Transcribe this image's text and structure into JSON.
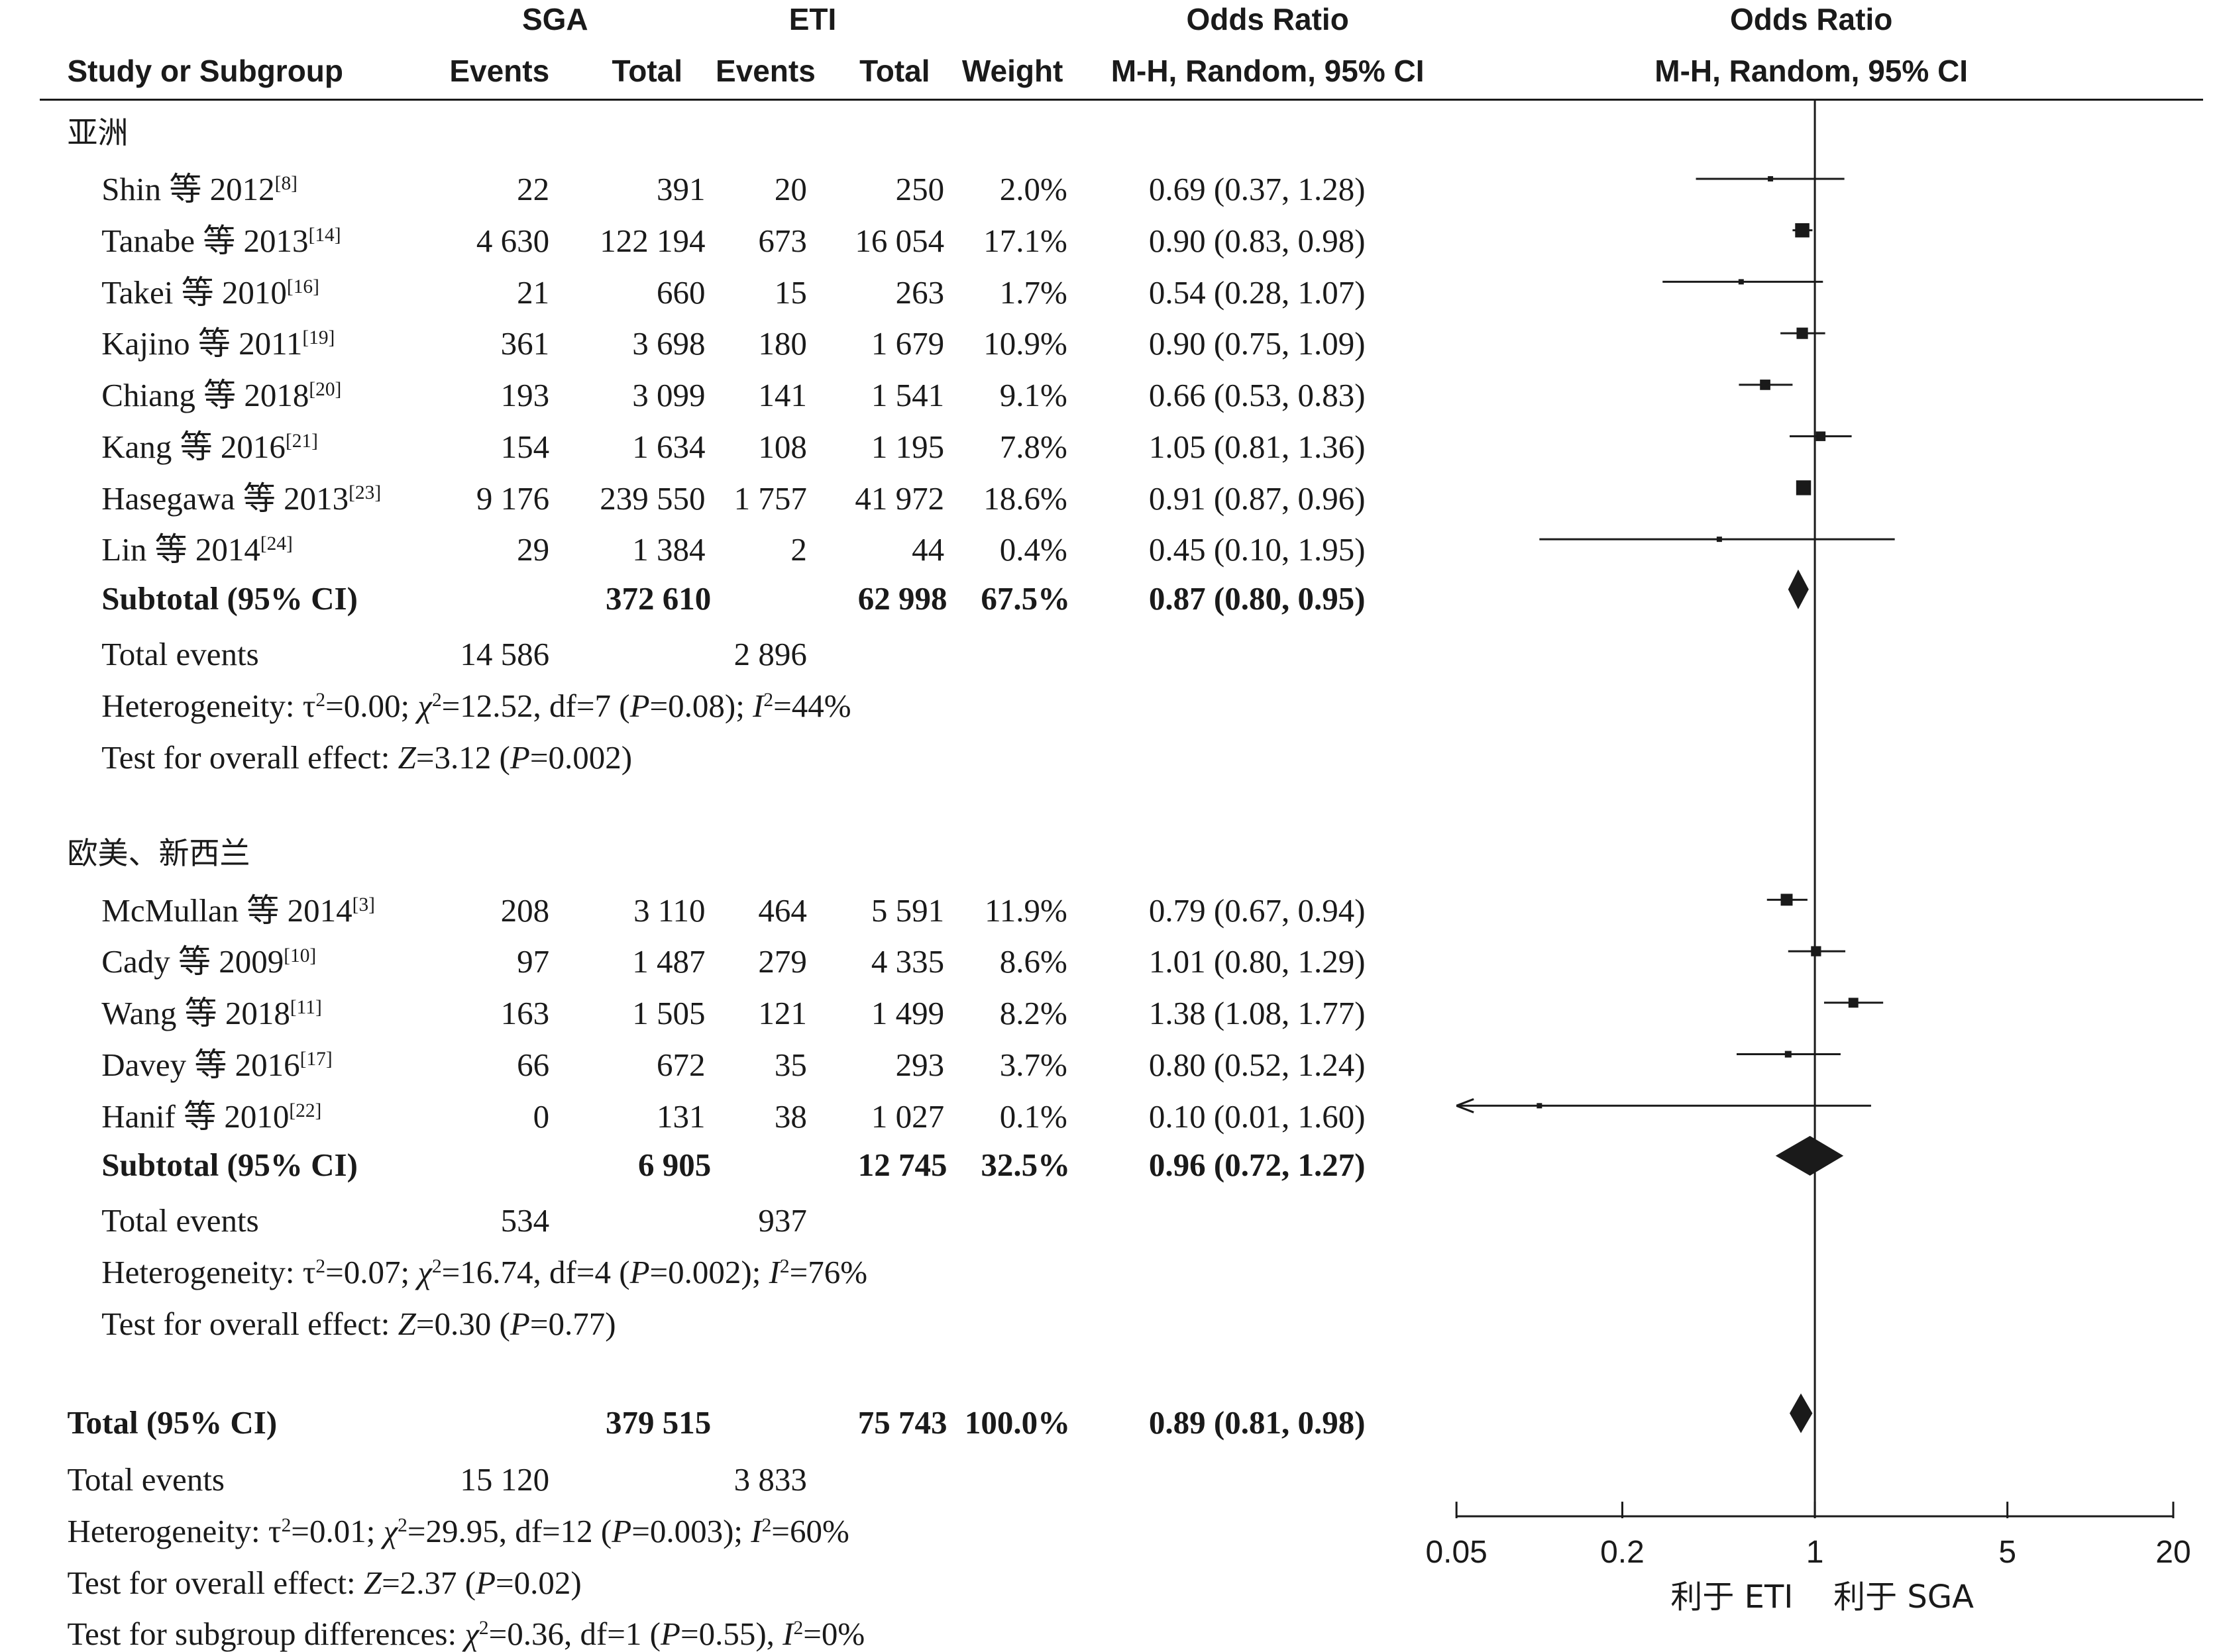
{
  "header": {
    "group1_label": "SGA",
    "group2_label": "ETI",
    "or_label_table": "Odds Ratio",
    "or_label_plot": "Odds Ratio",
    "study_col": "Study or Subgroup",
    "events1": "Events",
    "total1": "Total",
    "events2": "Events",
    "total2": "Total",
    "weight": "Weight",
    "method_table": "M-H, Random, 95% CI",
    "method_plot": "M-H, Random, 95% CI"
  },
  "subgroups": [
    {
      "title": "亚洲",
      "studies": [
        {
          "name": "Shin 等 2012",
          "ref": "[8]",
          "e1": "22",
          "t1": "391",
          "e2": "20",
          "t2": "250",
          "weight": "2.0%",
          "ci": "0.69 (0.37, 1.28)"
        },
        {
          "name": "Tanabe 等 2013",
          "ref": "[14]",
          "e1": "4 630",
          "t1": "122 194",
          "e2": "673",
          "t2": "16 054",
          "weight": "17.1%",
          "ci": "0.90 (0.83, 0.98)"
        },
        {
          "name": "Takei 等 2010",
          "ref": "[16]",
          "e1": "21",
          "t1": "660",
          "e2": "15",
          "t2": "263",
          "weight": "1.7%",
          "ci": "0.54 (0.28, 1.07)"
        },
        {
          "name": "Kajino 等 2011",
          "ref": "[19]",
          "e1": "361",
          "t1": "3 698",
          "e2": "180",
          "t2": "1 679",
          "weight": "10.9%",
          "ci": "0.90 (0.75, 1.09)"
        },
        {
          "name": "Chiang 等 2018",
          "ref": "[20]",
          "e1": "193",
          "t1": "3 099",
          "e2": "141",
          "t2": "1 541",
          "weight": "9.1%",
          "ci": "0.66 (0.53, 0.83)"
        },
        {
          "name": "Kang 等 2016",
          "ref": "[21]",
          "e1": "154",
          "t1": "1 634",
          "e2": "108",
          "t2": "1 195",
          "weight": "7.8%",
          "ci": "1.05 (0.81, 1.36)"
        },
        {
          "name": "Hasegawa 等 2013",
          "ref": "[23]",
          "e1": "9 176",
          "t1": "239 550",
          "e2": "1 757",
          "t2": "41 972",
          "weight": "18.6%",
          "ci": "0.91 (0.87, 0.96)"
        },
        {
          "name": "Lin 等 2014",
          "ref": "[24]",
          "e1": "29",
          "t1": "1 384",
          "e2": "2",
          "t2": "44",
          "weight": "0.4%",
          "ci": "0.45 (0.10, 1.95)"
        }
      ],
      "subtotal": {
        "label": "Subtotal (95% CI)",
        "t1": "372 610",
        "t2": "62 998",
        "weight": "67.5%",
        "ci": "0.87 (0.80, 0.95)"
      },
      "total_events": {
        "label": "Total events",
        "e1": "14 586",
        "e2": "2 896"
      },
      "heterogeneity": {
        "prefix": "Heterogeneity: ",
        "tau2": "0.00",
        "chi2": "12.52",
        "df": "7",
        "p": "0.08",
        "i2": "44%"
      },
      "overall": {
        "prefix": "Test for overall effect: ",
        "z": "3.12",
        "p": "0.002"
      }
    },
    {
      "title": "欧美、新西兰",
      "studies": [
        {
          "name": "McMullan 等 2014",
          "ref": "[3]",
          "e1": "208",
          "t1": "3 110",
          "e2": "464",
          "t2": "5 591",
          "weight": "11.9%",
          "ci": "0.79 (0.67, 0.94)"
        },
        {
          "name": "Cady 等 2009",
          "ref": "[10]",
          "e1": "97",
          "t1": "1 487",
          "e2": "279",
          "t2": "4 335",
          "weight": "8.6%",
          "ci": "1.01 (0.80, 1.29)"
        },
        {
          "name": "Wang 等 2018",
          "ref": "[11]",
          "e1": "163",
          "t1": "1 505",
          "e2": "121",
          "t2": "1 499",
          "weight": "8.2%",
          "ci": "1.38 (1.08, 1.77)"
        },
        {
          "name": "Davey 等 2016",
          "ref": "[17]",
          "e1": "66",
          "t1": "672",
          "e2": "35",
          "t2": "293",
          "weight": "3.7%",
          "ci": "0.80 (0.52, 1.24)"
        },
        {
          "name": "Hanif 等 2010",
          "ref": "[22]",
          "e1": "0",
          "t1": "131",
          "e2": "38",
          "t2": "1 027",
          "weight": "0.1%",
          "ci": "0.10 (0.01, 1.60)"
        }
      ],
      "subtotal": {
        "label": "Subtotal (95% CI)",
        "t1": "6 905",
        "t2": "12 745",
        "weight": "32.5%",
        "ci": "0.96 (0.72, 1.27)"
      },
      "total_events": {
        "label": "Total events",
        "e1": "534",
        "e2": "937"
      },
      "heterogeneity": {
        "prefix": "Heterogeneity: ",
        "tau2": "0.07",
        "chi2": "16.74",
        "df": "4",
        "p": "0.002",
        "i2": "76%"
      },
      "overall": {
        "prefix": "Test for overall effect: ",
        "z": "0.30",
        "p": "0.77"
      }
    }
  ],
  "total": {
    "label": "Total (95% CI)",
    "t1": "379 515",
    "t2": "75 743",
    "weight": "100.0%",
    "ci": "0.89 (0.81, 0.98)",
    "total_events": {
      "label": "Total events",
      "e1": "15 120",
      "e2": "3 833"
    },
    "heterogeneity": {
      "prefix": "Heterogeneity: ",
      "tau2": "0.01",
      "chi2": "29.95",
      "df": "12",
      "p": "0.003",
      "i2": "60%"
    },
    "overall": {
      "prefix": "Test for overall effect: ",
      "z": "2.37",
      "p": "0.02"
    },
    "subgroup_diff": {
      "prefix": "Test for subgroup differences: ",
      "chi2": "0.36",
      "df": "1",
      "p": "0.55",
      "i2": "0%"
    }
  },
  "chart_data": {
    "type": "forest",
    "scale": "log",
    "xlim": [
      0.05,
      20
    ],
    "ticks": [
      "0.05",
      "0.2",
      "1",
      "5",
      "20"
    ],
    "tick_values": [
      0.05,
      0.2,
      1,
      5,
      20
    ],
    "favours_left": "利于 ETI",
    "favours_right": "利于 SGA",
    "studies": [
      {
        "or": 0.69,
        "lo": 0.37,
        "hi": 1.28,
        "weight": 2.0
      },
      {
        "or": 0.9,
        "lo": 0.83,
        "hi": 0.98,
        "weight": 17.1
      },
      {
        "or": 0.54,
        "lo": 0.28,
        "hi": 1.07,
        "weight": 1.7
      },
      {
        "or": 0.9,
        "lo": 0.75,
        "hi": 1.09,
        "weight": 10.9
      },
      {
        "or": 0.66,
        "lo": 0.53,
        "hi": 0.83,
        "weight": 9.1
      },
      {
        "or": 1.05,
        "lo": 0.81,
        "hi": 1.36,
        "weight": 7.8
      },
      {
        "or": 0.91,
        "lo": 0.87,
        "hi": 0.96,
        "weight": 18.6
      },
      {
        "or": 0.45,
        "lo": 0.1,
        "hi": 1.95,
        "weight": 0.4
      },
      {
        "or": 0.79,
        "lo": 0.67,
        "hi": 0.94,
        "weight": 11.9
      },
      {
        "or": 1.01,
        "lo": 0.8,
        "hi": 1.29,
        "weight": 8.6
      },
      {
        "or": 1.38,
        "lo": 1.08,
        "hi": 1.77,
        "weight": 8.2
      },
      {
        "or": 0.8,
        "lo": 0.52,
        "hi": 1.24,
        "weight": 3.7
      },
      {
        "or": 0.1,
        "lo": 0.01,
        "hi": 1.6,
        "weight": 0.1
      }
    ],
    "diamonds": [
      {
        "or": 0.87,
        "lo": 0.8,
        "hi": 0.95
      },
      {
        "or": 0.96,
        "lo": 0.72,
        "hi": 1.27
      },
      {
        "or": 0.89,
        "lo": 0.81,
        "hi": 0.98
      }
    ]
  }
}
